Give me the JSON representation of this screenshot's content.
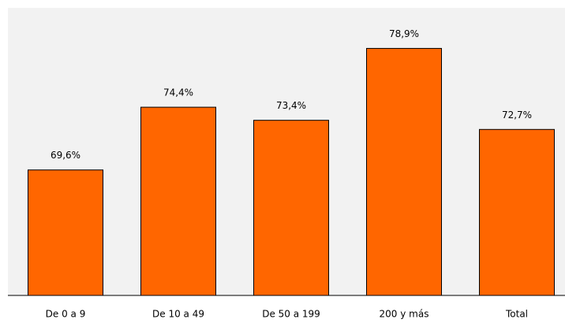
{
  "chart_data": {
    "type": "bar",
    "categories": [
      "De 0 a 9",
      "De 10 a 49",
      "De 50 a 199",
      "200 y más",
      "Total"
    ],
    "values": [
      69.6,
      74.4,
      73.4,
      78.9,
      72.7
    ],
    "value_labels": [
      "69,6%",
      "74,4%",
      "73,4%",
      "78,9%",
      "72,7%"
    ],
    "color": "#ff6600",
    "ylim": [
      60,
      82
    ]
  }
}
